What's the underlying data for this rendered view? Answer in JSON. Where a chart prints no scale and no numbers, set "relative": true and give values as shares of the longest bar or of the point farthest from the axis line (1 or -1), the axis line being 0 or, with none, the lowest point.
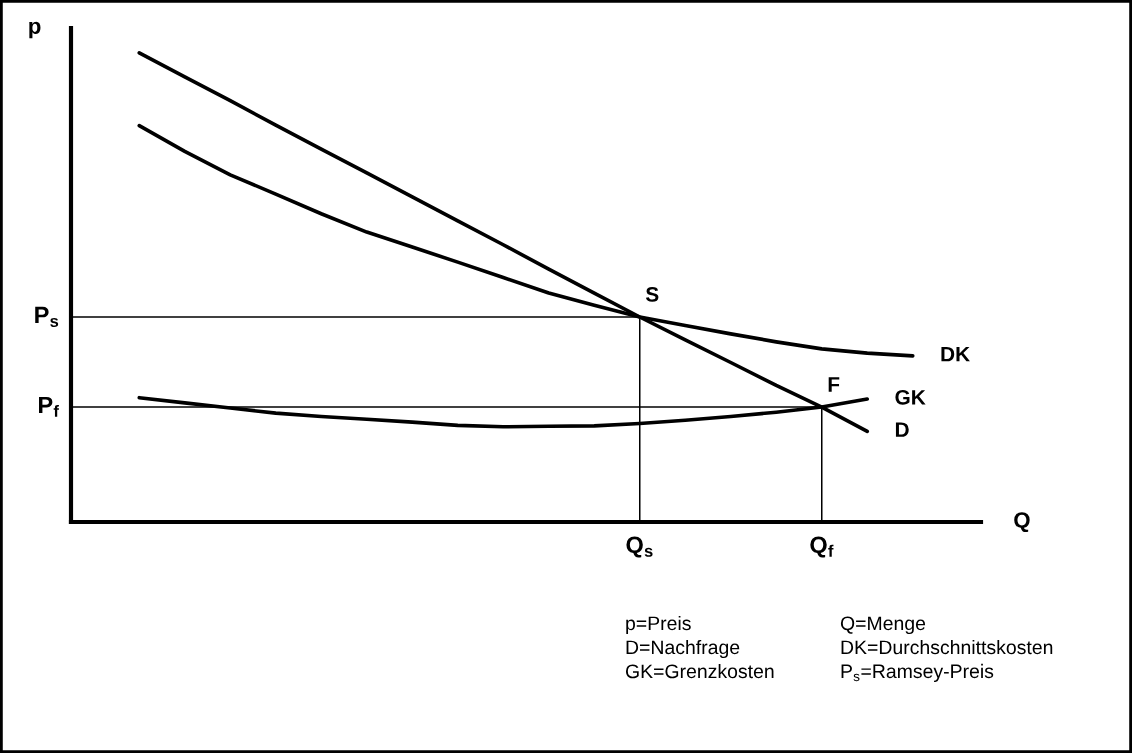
{
  "chart_data": {
    "type": "line",
    "relative": true,
    "xlabel": "Q",
    "ylabel": "p",
    "categories": [
      null,
      null,
      null,
      null,
      null,
      null,
      null,
      null,
      null,
      null,
      null,
      null,
      "Q$_{s}$",
      null,
      null,
      null,
      "Q$_{f}$",
      null,
      null,
      null
    ],
    "series": [
      {
        "name": "D",
        "color": "#000000",
        "values": [
          null,
          1.0,
          0.949,
          0.898,
          0.846,
          0.795,
          0.744,
          0.693,
          0.642,
          0.591,
          0.539,
          0.488,
          0.437,
          0.388,
          0.34,
          0.291,
          0.245,
          0.193,
          null,
          null
        ]
      },
      {
        "name": "DK",
        "color": "#000000",
        "values": [
          null,
          0.845,
          0.79,
          0.74,
          0.699,
          0.657,
          0.618,
          0.586,
          0.554,
          0.521,
          0.488,
          0.462,
          0.437,
          0.419,
          0.401,
          0.384,
          0.369,
          0.36,
          0.354,
          null
        ]
      },
      {
        "name": "GK",
        "color": "#000000",
        "values": [
          null,
          0.265,
          0.254,
          0.243,
          0.232,
          0.225,
          0.219,
          0.213,
          0.206,
          0.203,
          0.204,
          0.205,
          0.21,
          0.217,
          0.225,
          0.234,
          0.245,
          0.262,
          null,
          null
        ]
      }
    ],
    "ref_lines": [
      {
        "axis": "y",
        "value": 0.437,
        "label": "P$_{s}$",
        "color": "#000000"
      },
      {
        "axis": "y",
        "value": 0.245,
        "label": "P$_{f}$",
        "color": "#000000"
      }
    ],
    "annotations": [
      {
        "text": "S",
        "x": "Q$_{s}$",
        "y": 0.437
      },
      {
        "text": "F",
        "x": "Q$_{f}$",
        "y": 0.245
      },
      "p=Preis",
      "Q=Menge",
      "D=Nachfrage",
      "DK=Durchschnittskosten",
      "GK=Grenzkosten",
      "P$_{s}$=Ramsey-Preis"
    ]
  }
}
